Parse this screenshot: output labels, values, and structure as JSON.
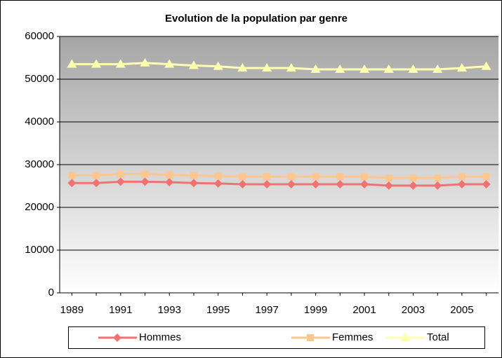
{
  "chart_data": {
    "type": "line",
    "title": "Evolution de la population par genre",
    "categories": [
      "1989",
      null,
      "1991",
      null,
      "1993",
      null,
      "1995",
      null,
      "1997",
      null,
      "1999",
      null,
      "2001",
      null,
      "2003",
      null,
      "2005",
      null
    ],
    "series": [
      {
        "name": "Hommes",
        "color": "#f07272",
        "marker": "diamond",
        "values": [
          25700,
          25700,
          26000,
          26000,
          25900,
          25700,
          25600,
          25400,
          25400,
          25400,
          25400,
          25400,
          25400,
          25100,
          25100,
          25100,
          25400,
          25400
        ]
      },
      {
        "name": "Femmes",
        "color": "#ffc68e",
        "marker": "square",
        "values": [
          27500,
          27500,
          27800,
          27800,
          27600,
          27500,
          27300,
          27200,
          27200,
          27200,
          27200,
          27200,
          27200,
          26900,
          26900,
          26900,
          27200,
          27200
        ]
      },
      {
        "name": "Total",
        "color": "#ffffb0",
        "marker": "triangle",
        "values": [
          53500,
          53500,
          53500,
          53800,
          53500,
          53200,
          53000,
          52600,
          52600,
          52600,
          52300,
          52300,
          52300,
          52300,
          52300,
          52300,
          52600,
          53000
        ]
      }
    ],
    "ylim": [
      0,
      60000
    ],
    "yticks": [
      0,
      10000,
      20000,
      30000,
      40000,
      50000,
      60000
    ],
    "grid": true,
    "legend": "bottom"
  }
}
